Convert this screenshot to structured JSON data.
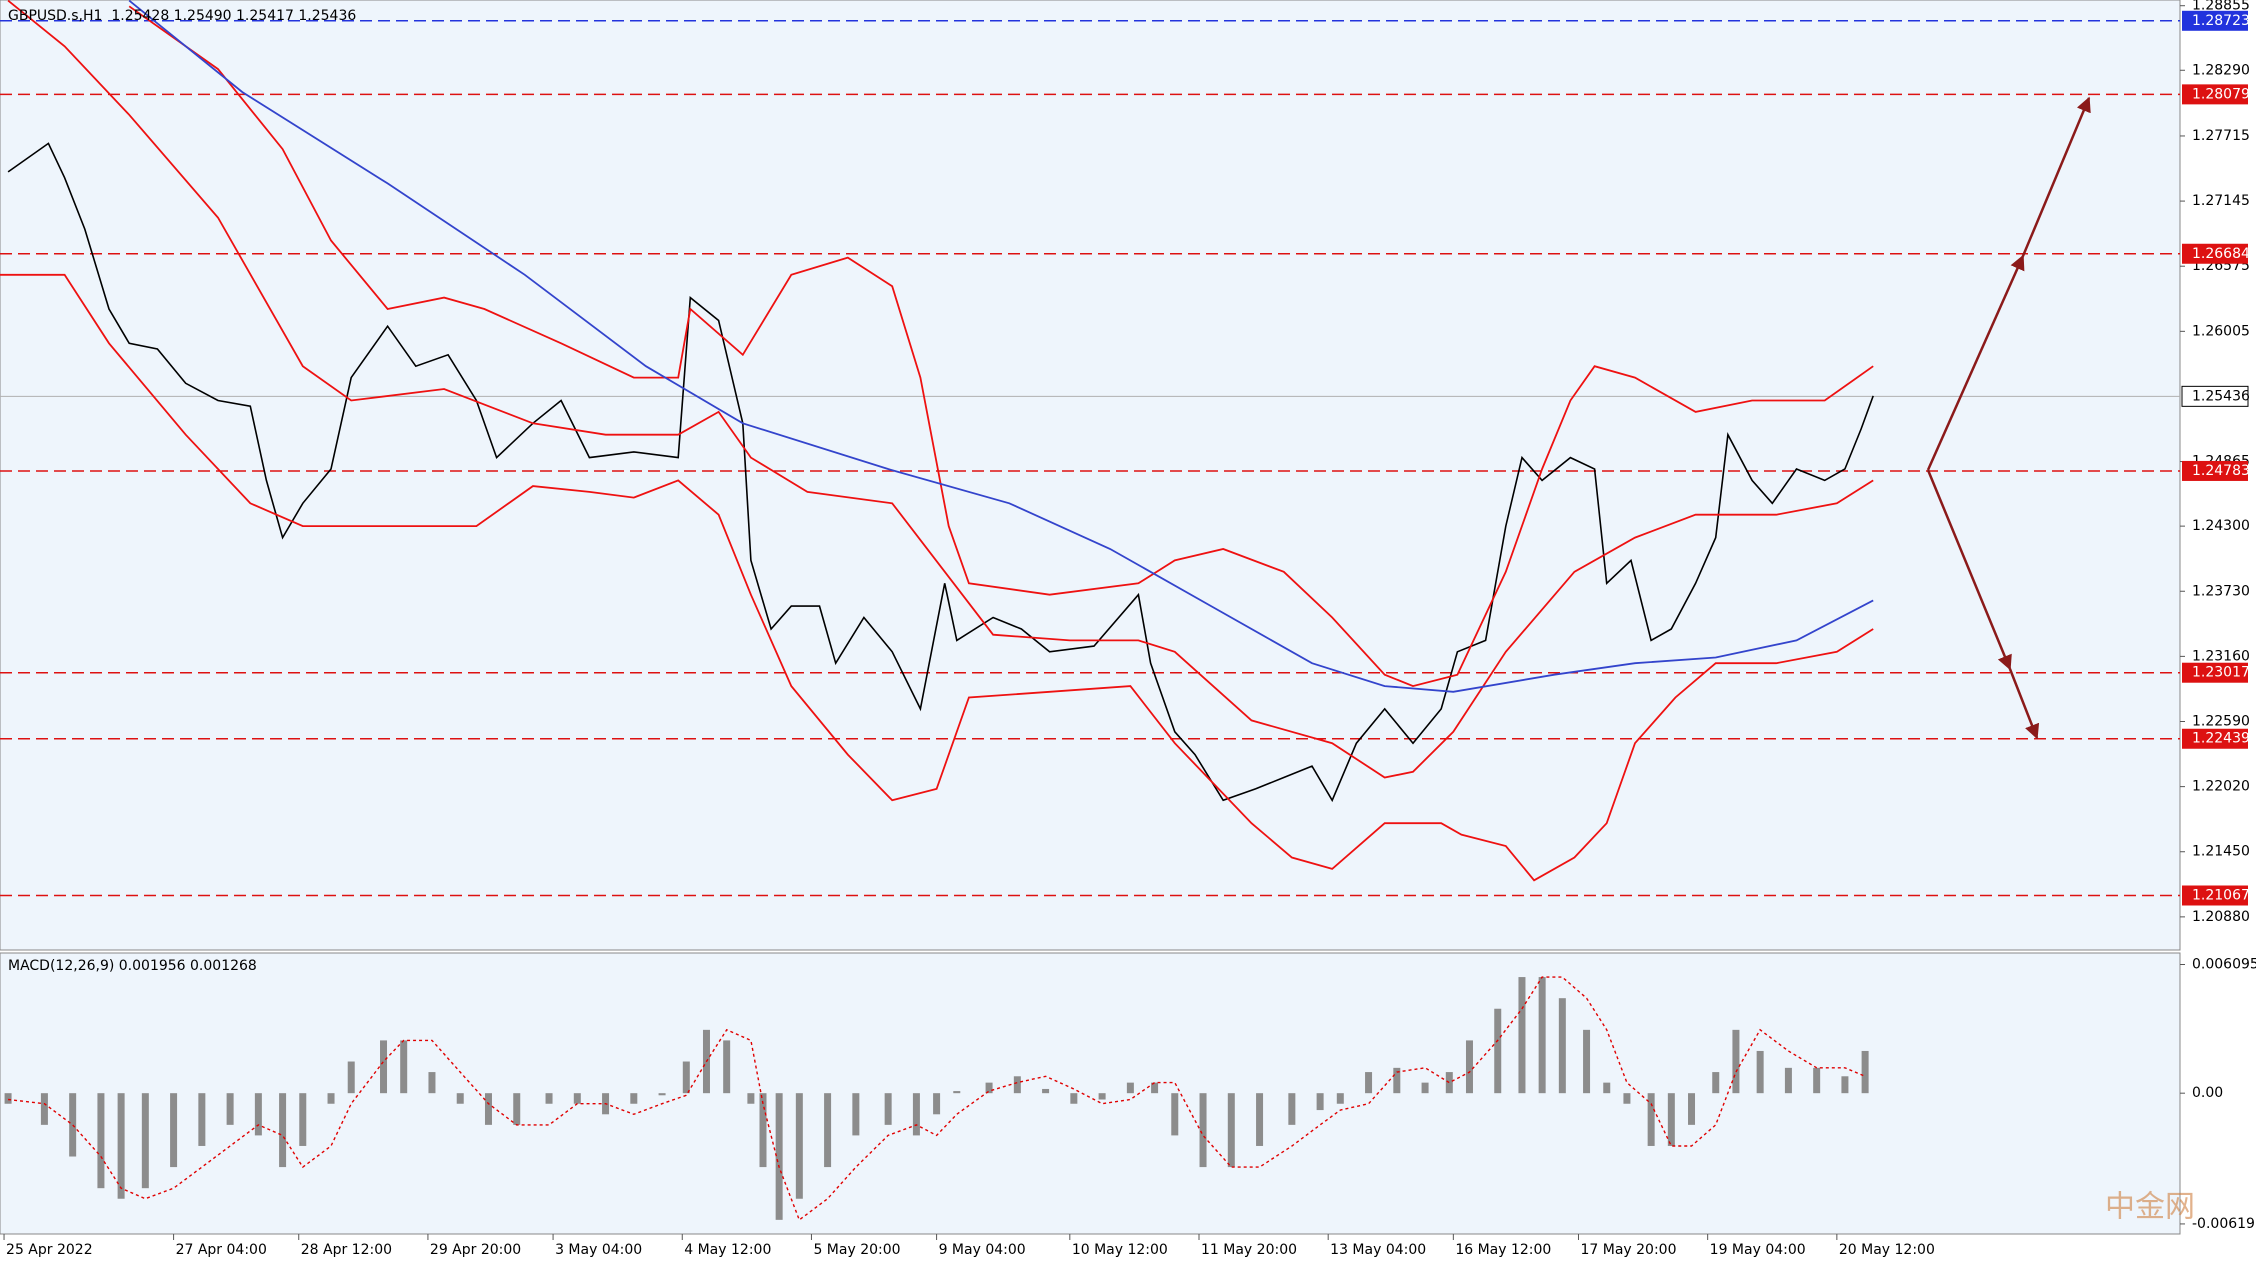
{
  "chart_data": [
    {
      "type": "line",
      "title": "GBPUSD.s,H1  1.25428 1.25490 1.25417 1.25436",
      "background": "#eef5fc",
      "xlim": [
        0,
        540
      ],
      "xticks": [
        {
          "value": 1,
          "label": "25 Apr 2022"
        },
        {
          "value": 43,
          "label": "27 Apr 04:00"
        },
        {
          "value": 74,
          "label": "28 Apr 12:00"
        },
        {
          "value": 106,
          "label": "29 Apr 20:00"
        },
        {
          "value": 137,
          "label": "3 May 04:00"
        },
        {
          "value": 169,
          "label": "4 May 12:00"
        },
        {
          "value": 201,
          "label": "5 May 20:00"
        },
        {
          "value": 232,
          "label": "9 May 04:00"
        },
        {
          "value": 265,
          "label": "10 May 12:00"
        },
        {
          "value": 297,
          "label": "11 May 20:00"
        },
        {
          "value": 329,
          "label": "13 May 04:00"
        },
        {
          "value": 360,
          "label": "16 May 12:00"
        },
        {
          "value": 391,
          "label": "17 May 20:00"
        },
        {
          "value": 423,
          "label": "19 May 04:00"
        },
        {
          "value": 455,
          "label": "20 May 12:00"
        }
      ],
      "ylim": [
        1.2059,
        1.28905
      ],
      "yticks": [
        {
          "value": 1.28855,
          "label": "1.28855"
        },
        {
          "value": 1.2829,
          "label": "1.28290"
        },
        {
          "value": 1.27715,
          "label": "1.27715"
        },
        {
          "value": 1.27145,
          "label": "1.27145"
        },
        {
          "value": 1.26575,
          "label": "1.26575"
        },
        {
          "value": 1.26005,
          "label": "1.26005"
        },
        {
          "value": 1.24865,
          "label": "1.24865"
        },
        {
          "value": 1.243,
          "label": "1.24300"
        },
        {
          "value": 1.2373,
          "label": "1.23730"
        },
        {
          "value": 1.2316,
          "label": "1.23160"
        },
        {
          "value": 1.2259,
          "label": "1.22590"
        },
        {
          "value": 1.2202,
          "label": "1.22020"
        },
        {
          "value": 1.2145,
          "label": "1.21450"
        },
        {
          "value": 1.2088,
          "label": "1.20880"
        }
      ],
      "levels": [
        {
          "value": 1.28723,
          "color": "#2233dd"
        },
        {
          "value": 1.28079,
          "color": "#dd1111"
        },
        {
          "value": 1.26684,
          "color": "#dd1111"
        },
        {
          "value": 1.24783,
          "color": "#dd1111"
        },
        {
          "value": 1.23017,
          "color": "#dd1111"
        },
        {
          "value": 1.22439,
          "color": "#dd1111"
        },
        {
          "value": 1.21067,
          "color": "#dd1111"
        }
      ],
      "last_price": 1.25436,
      "series": [
        {
          "color": "#000000",
          "x": [
            2,
            12,
            16,
            21,
            27,
            32,
            39,
            46,
            54,
            62,
            66,
            70,
            75,
            82,
            87,
            96,
            103,
            111,
            118,
            123,
            132,
            139,
            146,
            157,
            168,
            171,
            178,
            184,
            186,
            191,
            196,
            203,
            207,
            214,
            221,
            228,
            234,
            237,
            246,
            253,
            260,
            271,
            282,
            285,
            291,
            296,
            303,
            311,
            318,
            325,
            330,
            336,
            343,
            350,
            357,
            361,
            368,
            373,
            377,
            382,
            389,
            395,
            398,
            404,
            409,
            414,
            420,
            425,
            428,
            434,
            439,
            445,
            452,
            457,
            461,
            464
          ],
          "values": [
            1.274,
            1.2765,
            1.2735,
            1.269,
            1.262,
            1.259,
            1.2585,
            1.2555,
            1.254,
            1.2535,
            1.247,
            1.242,
            1.245,
            1.248,
            1.256,
            1.2605,
            1.257,
            1.258,
            1.254,
            1.249,
            1.252,
            1.254,
            1.249,
            1.2495,
            1.249,
            1.263,
            1.261,
            1.252,
            1.24,
            1.234,
            1.236,
            1.236,
            1.231,
            1.235,
            1.232,
            1.227,
            1.238,
            1.233,
            1.235,
            1.234,
            1.232,
            1.2325,
            1.237,
            1.231,
            1.225,
            1.223,
            1.219,
            1.22,
            1.221,
            1.222,
            1.219,
            1.224,
            1.227,
            1.224,
            1.227,
            1.232,
            1.233,
            1.243,
            1.249,
            1.247,
            1.249,
            1.248,
            1.238,
            1.24,
            1.233,
            1.234,
            1.238,
            1.242,
            1.251,
            1.247,
            1.245,
            1.248,
            1.247,
            1.248,
            1.2515,
            1.2544
          ]
        },
        {
          "color": "#ee1111",
          "x": [
            32,
            54,
            70,
            82,
            96,
            110,
            120,
            139,
            157,
            168,
            171,
            184,
            196,
            210,
            221,
            228,
            235,
            240,
            260,
            282,
            291,
            303,
            318,
            330,
            343,
            350,
            361,
            373,
            382,
            389,
            395,
            405,
            420,
            434,
            452,
            464
          ],
          "values": [
            1.2885,
            1.283,
            1.276,
            1.268,
            1.262,
            1.263,
            1.262,
            1.259,
            1.256,
            1.256,
            1.262,
            1.258,
            1.265,
            1.2665,
            1.264,
            1.256,
            1.243,
            1.238,
            1.237,
            1.238,
            1.24,
            1.241,
            1.239,
            1.235,
            1.23,
            1.229,
            1.23,
            1.239,
            1.248,
            1.254,
            1.257,
            1.256,
            1.253,
            1.254,
            1.254,
            1.257
          ]
        },
        {
          "color": "#ee1111",
          "x": [
            2,
            16,
            32,
            54,
            75,
            87,
            110,
            132,
            150,
            168,
            178,
            186,
            200,
            221,
            246,
            265,
            282,
            291,
            310,
            330,
            343,
            350,
            360,
            373,
            390,
            405,
            420,
            440,
            455,
            464
          ],
          "values": [
            1.289,
            1.285,
            1.279,
            1.27,
            1.257,
            1.254,
            1.255,
            1.252,
            1.251,
            1.251,
            1.253,
            1.249,
            1.246,
            1.245,
            1.2335,
            1.233,
            1.233,
            1.232,
            1.226,
            1.224,
            1.221,
            1.2215,
            1.225,
            1.232,
            1.239,
            1.242,
            1.244,
            1.244,
            1.245,
            1.247
          ]
        },
        {
          "color": "#ee1111",
          "x": [
            0,
            16,
            27,
            46,
            62,
            75,
            96,
            118,
            132,
            146,
            157,
            168,
            178,
            186,
            196,
            210,
            221,
            232,
            240,
            260,
            280,
            291,
            310,
            320,
            330,
            343,
            357,
            362,
            373,
            380,
            390,
            398,
            405,
            415,
            425,
            440,
            455,
            464
          ],
          "values": [
            1.265,
            1.265,
            1.259,
            1.251,
            1.245,
            1.243,
            1.243,
            1.243,
            1.2465,
            1.246,
            1.2455,
            1.247,
            1.244,
            1.237,
            1.229,
            1.223,
            1.219,
            1.22,
            1.228,
            1.2285,
            1.229,
            1.224,
            1.217,
            1.214,
            1.213,
            1.217,
            1.217,
            1.216,
            1.215,
            1.212,
            1.214,
            1.217,
            1.224,
            1.228,
            1.231,
            1.231,
            1.232,
            1.234
          ]
        },
        {
          "color": "#3344cc",
          "x": [
            32,
            60,
            96,
            130,
            160,
            184,
            220,
            250,
            275,
            300,
            325,
            343,
            360,
            385,
            405,
            425,
            445,
            464
          ],
          "values": [
            1.289,
            1.281,
            1.273,
            1.265,
            1.257,
            1.252,
            1.248,
            1.245,
            1.241,
            1.236,
            1.231,
            1.229,
            1.2285,
            1.23,
            1.231,
            1.2315,
            1.233,
            1.2365
          ]
        }
      ]
    },
    {
      "type": "bar",
      "title": "MACD(12,26,9) 0.001956 0.001268",
      "color": "#8c8c8c",
      "ylim": [
        -0.00667,
        0.00664
      ],
      "yticks": [
        0.006095,
        {
          "value": 0,
          "label": "0.00"
        },
        -0.006193
      ],
      "x": [
        2,
        11,
        18,
        25,
        30,
        36,
        43,
        50,
        57,
        64,
        70,
        75,
        82,
        87,
        95,
        100,
        107,
        114,
        121,
        128,
        136,
        143,
        150,
        157,
        164,
        170,
        175,
        180,
        186,
        189,
        193,
        198,
        205,
        212,
        220,
        227,
        232,
        237,
        245,
        252,
        259,
        266,
        273,
        280,
        286,
        291,
        298,
        305,
        312,
        320,
        327,
        332,
        339,
        346,
        353,
        359,
        364,
        371,
        377,
        382,
        387,
        393,
        398,
        403,
        409,
        414,
        419,
        425,
        430,
        436,
        443,
        450,
        457,
        462
      ],
      "values": [
        -0.0005,
        -0.0015,
        -0.003,
        -0.0045,
        -0.005,
        -0.0045,
        -0.0035,
        -0.0025,
        -0.0015,
        -0.002,
        -0.0035,
        -0.0025,
        -0.0005,
        0.0015,
        0.0025,
        0.0025,
        0.001,
        -0.0005,
        -0.0015,
        -0.0015,
        -0.0005,
        -0.0005,
        -0.001,
        -0.0005,
        -0.0001,
        0.0015,
        0.003,
        0.0025,
        -0.0005,
        -0.0035,
        -0.006,
        -0.005,
        -0.0035,
        -0.002,
        -0.0015,
        -0.002,
        -0.001,
        0.0001,
        0.0005,
        0.0008,
        0.0002,
        -0.0005,
        -0.0003,
        0.0005,
        0.0005,
        -0.002,
        -0.0035,
        -0.0035,
        -0.0025,
        -0.0015,
        -0.0008,
        -0.0005,
        0.001,
        0.0012,
        0.0005,
        0.001,
        0.0025,
        0.004,
        0.0055,
        0.0055,
        0.0045,
        0.003,
        0.0005,
        -0.0005,
        -0.0025,
        -0.0025,
        -0.0015,
        0.001,
        0.003,
        0.002,
        0.0012,
        0.0012,
        0.0008,
        0.002
      ],
      "series": [
        {
          "color": "#e00000",
          "values": [
            -0.0003,
            -0.0005,
            -0.0015,
            -0.003,
            -0.0045,
            -0.005,
            -0.0045,
            -0.0035,
            -0.0025,
            -0.0015,
            -0.002,
            -0.0035,
            -0.0025,
            -0.0005,
            0.0015,
            0.0025,
            0.0025,
            0.001,
            -0.0005,
            -0.0015,
            -0.0015,
            -0.0005,
            -0.0005,
            -0.001,
            -0.0005,
            -0.0001,
            0.0015,
            0.003,
            0.0025,
            -0.0005,
            -0.0035,
            -0.006,
            -0.005,
            -0.0035,
            -0.002,
            -0.0015,
            -0.002,
            -0.001,
            0.0001,
            0.0005,
            0.0008,
            0.0002,
            -0.0005,
            -0.0003,
            0.0005,
            0.0005,
            -0.002,
            -0.0035,
            -0.0035,
            -0.0025,
            -0.0015,
            -0.0008,
            -0.0005,
            0.001,
            0.0012,
            0.0005,
            0.001,
            0.0025,
            0.004,
            0.0055,
            0.0055,
            0.0045,
            0.003,
            0.0005,
            -0.0005,
            -0.0025,
            -0.0025,
            -0.0015,
            0.001,
            0.003,
            0.002,
            0.0012,
            0.0012,
            0.0008
          ]
        }
      ],
      "watermark": "中金网"
    }
  ]
}
